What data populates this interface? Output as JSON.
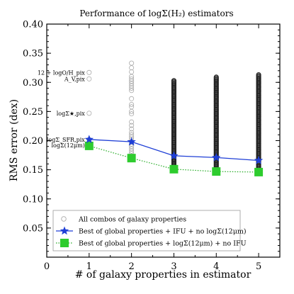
{
  "chart_data": {
    "type": "scatter",
    "title": "Performance of logΣ(H₂) estimators",
    "xlabel": "# of galaxy properties in estimator",
    "ylabel": "RMS error (dex)",
    "xlim": [
      0,
      5.5
    ],
    "ylim": [
      0,
      0.4
    ],
    "xticks": [
      0,
      1,
      2,
      3,
      4,
      5
    ],
    "yticks": [
      0.05,
      0.1,
      0.15,
      0.2,
      0.25,
      0.3,
      0.35,
      0.4
    ],
    "ytick_labels": [
      "0.05",
      "0.10",
      "0.15",
      "0.20",
      "0.25",
      "0.30",
      "0.35",
      "0.40"
    ],
    "grid": false,
    "legend_position": "lower-center",
    "series": [
      {
        "name": "All combos of galaxy properties",
        "style": "open-circle",
        "color": "#aaaaaa",
        "points": [
          {
            "x": 1,
            "y": 0.317
          },
          {
            "x": 1,
            "y": 0.306
          },
          {
            "x": 1,
            "y": 0.247
          },
          {
            "x": 1,
            "y": 0.202
          },
          {
            "x": 1,
            "y": 0.192
          },
          {
            "x": 2,
            "y": 0.333
          },
          {
            "x": 2,
            "y": 0.325
          },
          {
            "x": 2,
            "y": 0.318
          },
          {
            "x": 2,
            "y": 0.31
          },
          {
            "x": 2,
            "y": 0.306
          },
          {
            "x": 2,
            "y": 0.302
          },
          {
            "x": 2,
            "y": 0.298
          },
          {
            "x": 2,
            "y": 0.294
          },
          {
            "x": 2,
            "y": 0.29
          },
          {
            "x": 2,
            "y": 0.286
          },
          {
            "x": 2,
            "y": 0.272
          },
          {
            "x": 2,
            "y": 0.262
          },
          {
            "x": 2,
            "y": 0.258
          },
          {
            "x": 2,
            "y": 0.25
          },
          {
            "x": 2,
            "y": 0.246
          },
          {
            "x": 2,
            "y": 0.232
          },
          {
            "x": 2,
            "y": 0.226
          },
          {
            "x": 2,
            "y": 0.22
          },
          {
            "x": 2,
            "y": 0.214
          },
          {
            "x": 2,
            "y": 0.21
          },
          {
            "x": 2,
            "y": 0.206
          },
          {
            "x": 2,
            "y": 0.202
          },
          {
            "x": 2,
            "y": 0.198
          },
          {
            "x": 2,
            "y": 0.194
          },
          {
            "x": 2,
            "y": 0.19
          },
          {
            "x": 2,
            "y": 0.186
          },
          {
            "x": 2,
            "y": 0.182
          },
          {
            "x": 2,
            "y": 0.178
          },
          {
            "x": 2,
            "y": 0.174
          },
          {
            "x": 2,
            "y": 0.17
          }
        ],
        "dense_columns": [
          {
            "x": 3,
            "y_min": 0.151,
            "y_max": 0.303
          },
          {
            "x": 4,
            "y_min": 0.147,
            "y_max": 0.309
          },
          {
            "x": 5,
            "y_min": 0.146,
            "y_max": 0.313
          }
        ]
      },
      {
        "name": "Best of global properties + IFU + no logΣ(12μm)",
        "style": "star-solid-line",
        "color": "#1f3fd6",
        "x": [
          1,
          2,
          3,
          4,
          5
        ],
        "y": [
          0.202,
          0.198,
          0.174,
          0.171,
          0.166
        ]
      },
      {
        "name": "Best of global properties + logΣ(12μm) + no IFU",
        "style": "square-dotted-line",
        "color": "#2ecc2e",
        "x": [
          1,
          2,
          3,
          4,
          5
        ],
        "y": [
          0.191,
          0.17,
          0.151,
          0.147,
          0.146
        ]
      }
    ],
    "annotations": [
      {
        "text": "12 + logO/H_pix",
        "x": 1,
        "y": 0.317
      },
      {
        "text": "A_V,pix",
        "x": 1,
        "y": 0.306
      },
      {
        "text": "logΣ★,pix",
        "x": 1,
        "y": 0.247
      },
      {
        "text": "logΣ_SFR,pix",
        "x": 1,
        "y": 0.202
      },
      {
        "text": "logΣ(12μm)",
        "x": 1,
        "y": 0.192
      }
    ]
  }
}
